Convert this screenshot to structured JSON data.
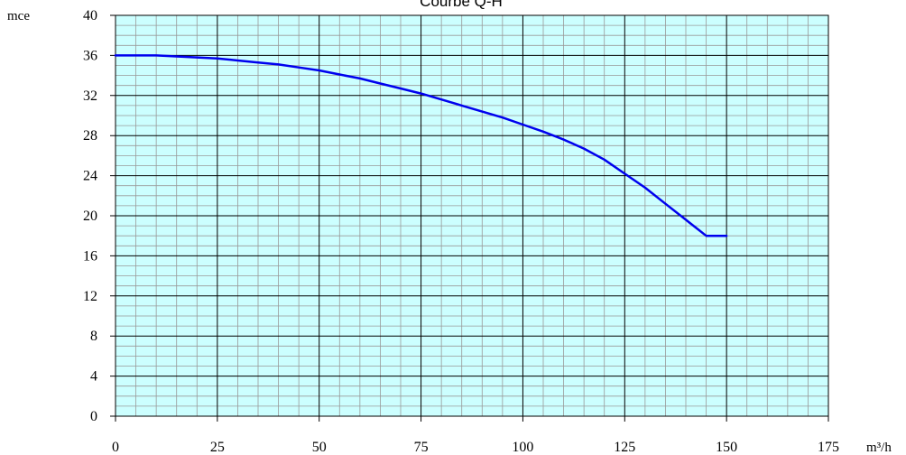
{
  "chart_data": {
    "type": "line",
    "title": "Courbe Q-H",
    "xlabel": "m³/h",
    "ylabel": "mce",
    "xlim": [
      0,
      175
    ],
    "ylim": [
      0,
      40
    ],
    "x_ticks": [
      0,
      25,
      50,
      75,
      100,
      125,
      150,
      175
    ],
    "y_ticks": [
      0,
      4,
      8,
      12,
      16,
      20,
      24,
      28,
      32,
      36,
      40
    ],
    "x_minor_step": 5,
    "y_minor_step": 1,
    "grid": true,
    "background_color": "#ccffff",
    "grid_major_color": "#000000",
    "grid_minor_color": "#999999",
    "series": [
      {
        "color": "#0000ee",
        "x": [
          0,
          5,
          10,
          15,
          20,
          25,
          30,
          35,
          40,
          45,
          50,
          55,
          60,
          65,
          70,
          75,
          80,
          85,
          90,
          95,
          100,
          105,
          110,
          115,
          120,
          125,
          130,
          135,
          140,
          145,
          150
        ],
        "y": [
          36.0,
          36.0,
          36.0,
          35.9,
          35.8,
          35.7,
          35.5,
          35.3,
          35.1,
          34.8,
          34.5,
          34.1,
          33.7,
          33.2,
          32.7,
          32.2,
          31.6,
          31.0,
          30.4,
          29.8,
          29.1,
          28.4,
          27.6,
          26.7,
          25.6,
          24.2,
          22.8,
          21.2,
          19.6,
          18.0,
          18.0
        ]
      }
    ]
  }
}
